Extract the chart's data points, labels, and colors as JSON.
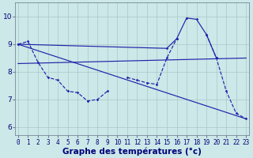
{
  "background_color": "#cce8e8",
  "line_color": "#2222aa",
  "xlabel": "Graphe des températures (°c)",
  "xlabel_fontsize": 7.5,
  "tick_fontsize": 5.5,
  "ylabel_ticks": [
    6,
    7,
    8,
    9,
    10
  ],
  "xlim": [
    -0.3,
    23.3
  ],
  "ylim": [
    5.7,
    10.5
  ],
  "line1_x": [
    0,
    1,
    2,
    3,
    4,
    5,
    6,
    7,
    8,
    9
  ],
  "line1_y": [
    9.0,
    9.1,
    8.35,
    7.8,
    7.7,
    7.3,
    7.25,
    6.95,
    7.0,
    7.3
  ],
  "line1b_x": [
    11,
    12,
    13,
    14,
    15,
    16
  ],
  "line1b_y": [
    7.8,
    7.7,
    7.6,
    7.55,
    8.5,
    9.2
  ],
  "line1c_x": [
    19,
    20,
    21,
    22,
    23
  ],
  "line1c_y": [
    9.35,
    8.5,
    7.3,
    6.5,
    6.3
  ],
  "line2_x": [
    0,
    23
  ],
  "line2_y": [
    8.3,
    8.5
  ],
  "line3_x": [
    0,
    15,
    16,
    17,
    18,
    19,
    20
  ],
  "line3_y": [
    9.0,
    8.85,
    9.2,
    9.95,
    9.9,
    9.35,
    8.5
  ],
  "line4_x": [
    0,
    23
  ],
  "line4_y": [
    9.0,
    6.3
  ]
}
